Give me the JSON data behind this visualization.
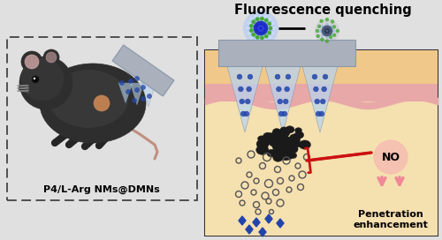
{
  "title": "Fluorescence quenching",
  "label_bottom_left": "P4/L-Arg NMs@DMNs",
  "label_no": "NO",
  "label_penetration": "Penetration\nenhancement",
  "bg_color": "#e8e8e8",
  "skin_tan_color": "#f0c88a",
  "skin_pink_color": "#e8a8a8",
  "skin_cream_color": "#f5e0b0",
  "needle_gray": "#aab0bc",
  "needle_dark": "#8899aa",
  "np_dark": "#1a1a1a",
  "np_ring": "#555555",
  "blue_dot": "#2244aa",
  "blue_glow": "#99bbff",
  "green_dot": "#44aa33",
  "arrow_pink": "#f08898",
  "arrow_red": "#cc1111",
  "no_circle": "#f5c0b0",
  "dashed_color": "#444444",
  "box_border": "#333333",
  "white": "#ffffff",
  "mouse_body": "#2e2e2e",
  "mouse_ear_inner": "#e8b8b8",
  "mouse_nose": "#cc8855",
  "mouse_tail": "#c09080",
  "top_bg": "#e0e0e0"
}
